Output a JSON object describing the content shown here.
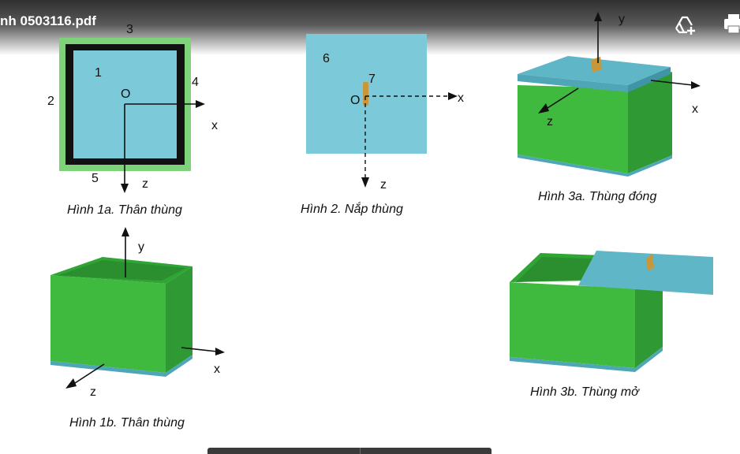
{
  "viewer": {
    "filename": "nh 0503116.pdf",
    "icons": [
      "add-to-drive-icon",
      "print-icon"
    ]
  },
  "figure_1a": {
    "labels": {
      "n1": "1",
      "n2": "2",
      "n3": "3",
      "n4": "4",
      "n5": "5",
      "origin": "O",
      "x": "x",
      "z": "z"
    },
    "caption": "Hình 1a. Thân thùng"
  },
  "figure_2": {
    "labels": {
      "n6": "6",
      "n7": "7",
      "origin": "O",
      "x": "x",
      "z": "z"
    },
    "caption": "Hình 2. Nắp thùng"
  },
  "figure_3a": {
    "labels": {
      "y": "y",
      "x": "x",
      "z": "z"
    },
    "caption": "Hình 3a. Thùng đóng"
  },
  "figure_1b": {
    "labels": {
      "y": "y",
      "x": "x",
      "z": "z"
    },
    "caption": "Hình 1b. Thân thùng"
  },
  "figure_3b": {
    "caption": "Hình 3b. Thùng mở"
  },
  "colors": {
    "box_green": "#3fba3f",
    "box_green_dark": "#2f9a34",
    "lid_teal": "#4fa6b6",
    "face_blue": "#7cc9da",
    "handle_gold": "#c8973a",
    "frame_light_green": "#7ed37a"
  }
}
